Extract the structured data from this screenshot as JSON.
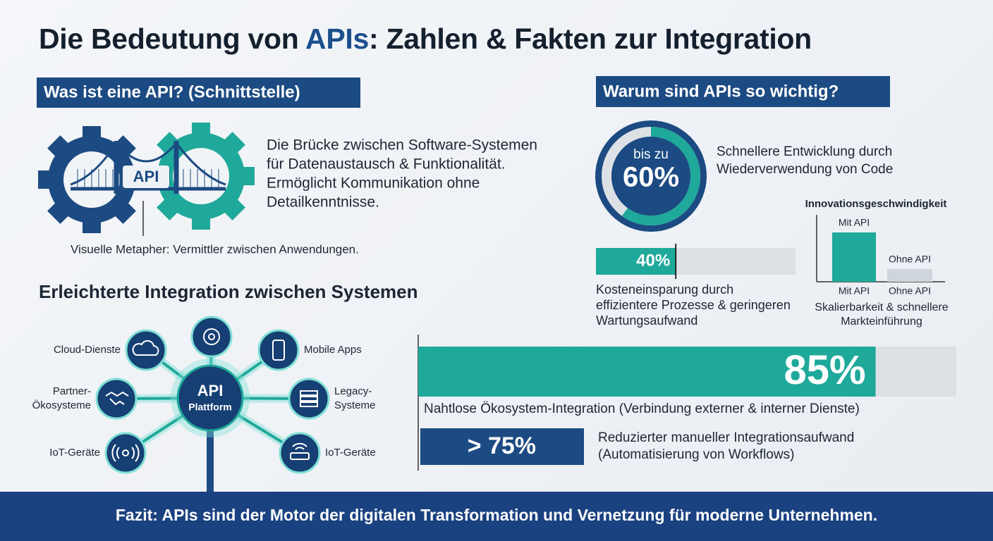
{
  "title": {
    "before": "Die Bedeutung von ",
    "highlight": "APIs",
    "after": ": Zahlen & Fakten zur Integration"
  },
  "what": {
    "heading": "Was ist eine API? (Schnittstelle)",
    "icon_label": "API",
    "description": [
      "Die Brücke zwischen Software-Systemen",
      "für Datenaustausch & Funktionalität.",
      "Ermöglicht Kommunikation ohne",
      "Detailkenntnisse."
    ],
    "caption": "Visuelle Metapher: Vermittler zwischen Anwendungen."
  },
  "integration": {
    "heading": "Erleichterte Integration zwischen Systemen",
    "hub": [
      "API",
      "Plattform"
    ],
    "nodes": [
      [
        "Cloud-Dienste"
      ],
      [
        "Mobile Apps"
      ],
      [
        "Partner-",
        "Ökosysteme"
      ],
      [
        "Legacy-",
        "Systeme"
      ],
      [
        "IoT-Geräte"
      ],
      [
        "IoT-Geräte"
      ]
    ]
  },
  "why": {
    "heading": "Warum sind APIs so wichtig?",
    "dev": {
      "prefix": "bis zu",
      "value": 60,
      "label": "60%",
      "text": [
        "Schnellere Entwicklung durch",
        "Wiederverwendung von Code"
      ]
    },
    "cost": {
      "value": 40,
      "label": "40%",
      "text": [
        "Kosteneinsparung durch",
        "effizientere Prozesse & geringeren",
        "Wartungsaufwand"
      ]
    },
    "innovation": {
      "title": "Innovationsgeschwindigkeit",
      "bar_labels": [
        "Mit API",
        "Ohne API"
      ],
      "axis_labels": [
        "Mit API",
        "Ohne API"
      ],
      "text": [
        "Skalierbarkeit & schnellere",
        "Markteinführung"
      ]
    },
    "ecosystem": {
      "value": 85,
      "label": "85%",
      "text": "Nahtlose Ökosystem-Integration (Verbindung externer & interner Dienste)"
    },
    "manual": {
      "label": "> 75%",
      "text": [
        "Reduzierter manueller Integrationsaufwand",
        "(Automatisierung von Workflows)"
      ]
    }
  },
  "footer": "Fazit: APIs sind der Motor der digitalen Transformation und Vernetzung für moderne Unternehmen."
}
